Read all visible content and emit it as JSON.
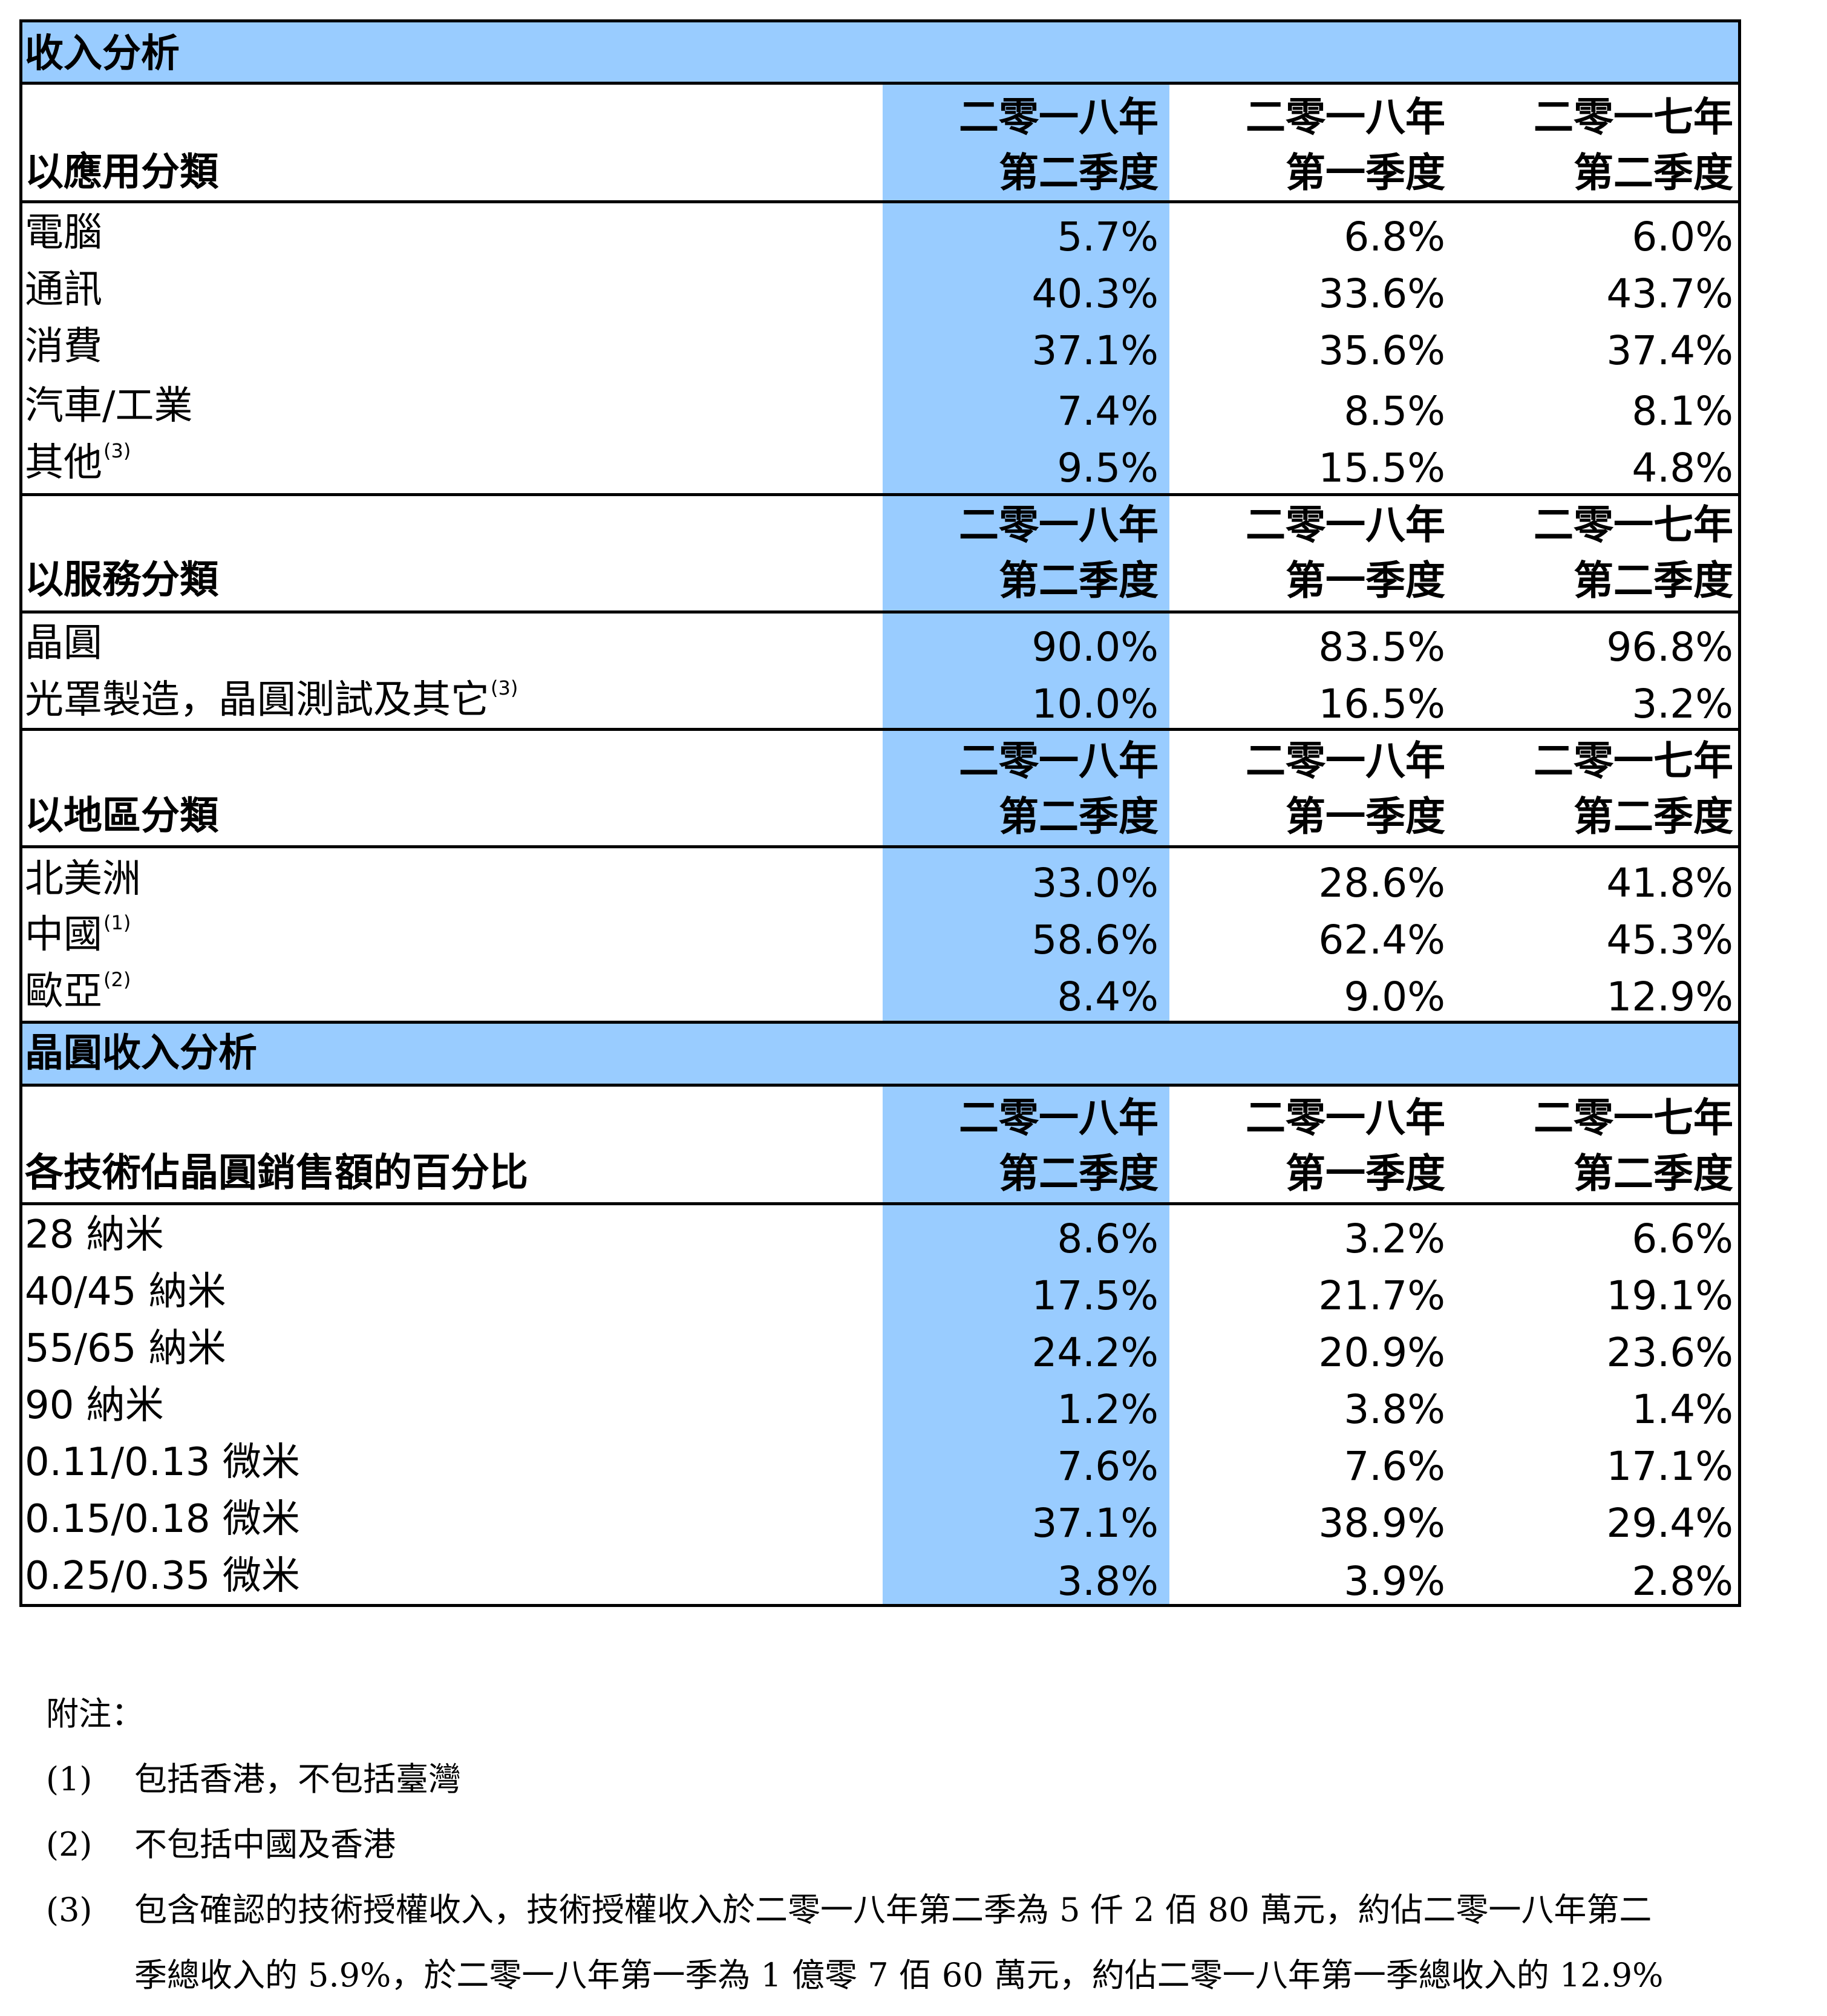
{
  "table": {
    "title": "收入分析",
    "columns": [
      "二零一八年\n第二季度",
      "二零一八年\n第一季度",
      "二零一七年\n第二季度"
    ],
    "col_line1": [
      "二零一八年",
      "二零一八年",
      "二零一七年"
    ],
    "col_line2": [
      "第二季度",
      "第一季度",
      "第二季度"
    ],
    "sections": [
      {
        "heading": "以應用分類",
        "rows": [
          {
            "label": "電腦",
            "note": "",
            "values": [
              "5.7%",
              "6.8%",
              "6.0%"
            ]
          },
          {
            "label": "通訊",
            "note": "",
            "values": [
              "40.3%",
              "33.6%",
              "43.7%"
            ]
          },
          {
            "label": "消費",
            "note": "",
            "values": [
              "37.1%",
              "35.6%",
              "37.4%"
            ]
          },
          {
            "label": "汽車/工業",
            "note": "",
            "values": [
              "7.4%",
              "8.5%",
              "8.1%"
            ]
          },
          {
            "label": "其他",
            "note": "(3)",
            "values": [
              "9.5%",
              "15.5%",
              "4.8%"
            ]
          }
        ]
      },
      {
        "heading": "以服務分類",
        "rows": [
          {
            "label": "晶圓",
            "note": "",
            "values": [
              "90.0%",
              "83.5%",
              "96.8%"
            ]
          },
          {
            "label": "光罩製造，晶圓測試及其它",
            "note": "(3)",
            "values": [
              "10.0%",
              "16.5%",
              "3.2%"
            ]
          }
        ]
      },
      {
        "heading": "以地區分類",
        "rows": [
          {
            "label": "北美洲",
            "note": "",
            "values": [
              "33.0%",
              "28.6%",
              "41.8%"
            ]
          },
          {
            "label": "中國",
            "note": "(1)",
            "values": [
              "58.6%",
              "62.4%",
              "45.3%"
            ]
          },
          {
            "label": "歐亞",
            "note": "(2)",
            "values": [
              "8.4%",
              "9.0%",
              "12.9%"
            ]
          }
        ]
      }
    ]
  },
  "wafer": {
    "title": "晶圓收入分析",
    "heading": "各技術佔晶圓銷售額的百分比",
    "rows": [
      {
        "label": "28  納米",
        "values": [
          "8.6%",
          "3.2%",
          "6.6%"
        ]
      },
      {
        "label": "40/45  納米",
        "values": [
          "17.5%",
          "21.7%",
          "19.1%"
        ]
      },
      {
        "label": "55/65  納米",
        "values": [
          "24.2%",
          "20.9%",
          "23.6%"
        ]
      },
      {
        "label": "90  納米",
        "values": [
          "1.2%",
          "3.8%",
          "1.4%"
        ]
      },
      {
        "label": "0.11/0.13 微米",
        "values": [
          "7.6%",
          "7.6%",
          "17.1%"
        ]
      },
      {
        "label": "0.15/0.18 微米",
        "values": [
          "37.1%",
          "38.9%",
          "29.4%"
        ]
      },
      {
        "label": "0.25/0.35 微米",
        "values": [
          "3.8%",
          "3.9%",
          "2.8%"
        ]
      }
    ]
  },
  "notes": {
    "title": "附注：",
    "items": [
      {
        "num": "(1)",
        "lines": [
          "包括香港，不包括臺灣"
        ]
      },
      {
        "num": "(2)",
        "lines": [
          "不包括中國及香港"
        ]
      },
      {
        "num": "(3)",
        "lines": [
          "包含確認的技術授權收入，技術授權收入於二零一八年第二季為 5 仟 2 佰 80 萬元，約佔二零一八年第二",
          "季總收入的 5.9%，於二零一八年第一季為 1 億零 7 佰 60 萬元，約佔二零一八年第一季總收入的 12.9%"
        ]
      }
    ]
  }
}
